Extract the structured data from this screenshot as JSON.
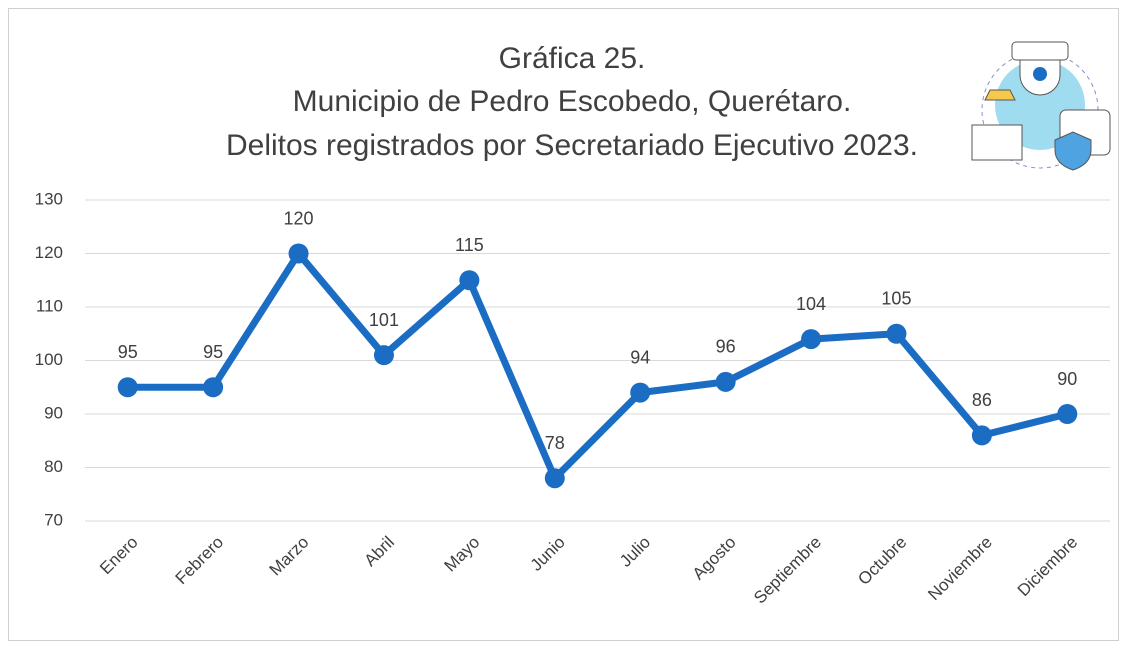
{
  "chart_data": {
    "type": "line",
    "title": [
      "Gráfica 25.",
      "Municipio de Pedro Escobedo, Querétaro.",
      "Delitos registrados por Secretariado Ejecutivo 2023."
    ],
    "categories": [
      "Enero",
      "Febrero",
      "Marzo",
      "Abril",
      "Mayo",
      "Junio",
      "Julio",
      "Agosto",
      "Septiembre",
      "Octubre",
      "Noviembre",
      "Diciembre"
    ],
    "values": [
      95,
      95,
      120,
      101,
      115,
      78,
      94,
      96,
      104,
      105,
      86,
      90
    ],
    "color": "#1b6dc3",
    "ylim": [
      70,
      130
    ],
    "yticks": [
      70,
      80,
      90,
      100,
      110,
      120,
      130
    ],
    "grid": true,
    "data_labels": true
  }
}
